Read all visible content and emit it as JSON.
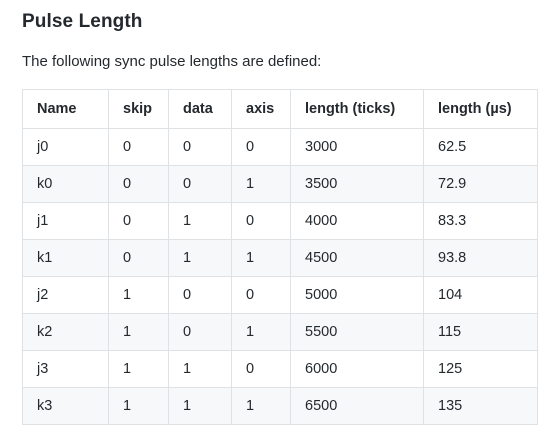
{
  "section": {
    "title": "Pulse Length",
    "intro": "The following sync pulse lengths are defined:"
  },
  "table": {
    "headers": [
      "Name",
      "skip",
      "data",
      "axis",
      "length (ticks)",
      "length (µs)"
    ],
    "rows": [
      [
        "j0",
        "0",
        "0",
        "0",
        "3000",
        "62.5"
      ],
      [
        "k0",
        "0",
        "0",
        "1",
        "3500",
        "72.9"
      ],
      [
        "j1",
        "0",
        "1",
        "0",
        "4000",
        "83.3"
      ],
      [
        "k1",
        "0",
        "1",
        "1",
        "4500",
        "93.8"
      ],
      [
        "j2",
        "1",
        "0",
        "0",
        "5000",
        "104"
      ],
      [
        "k2",
        "1",
        "0",
        "1",
        "5500",
        "115"
      ],
      [
        "j3",
        "1",
        "1",
        "0",
        "6000",
        "125"
      ],
      [
        "k3",
        "1",
        "1",
        "1",
        "6500",
        "135"
      ]
    ]
  }
}
